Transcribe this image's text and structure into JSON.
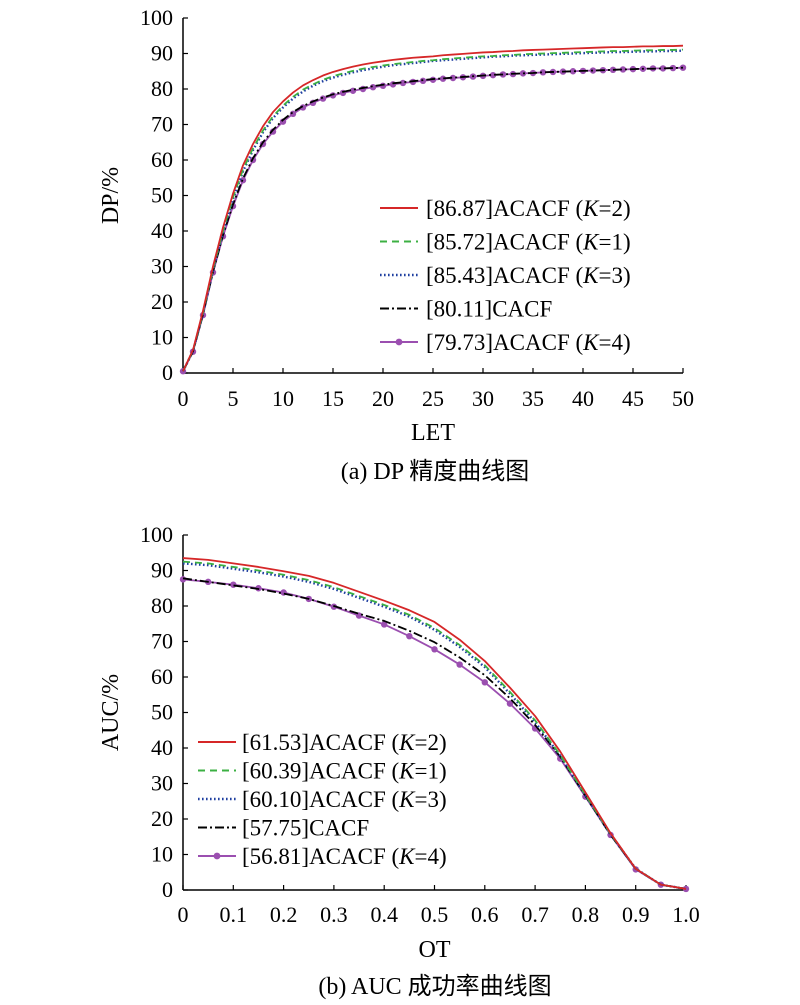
{
  "chart_data": [
    {
      "type": "line",
      "caption": "(a) DP 精度曲线图",
      "xlabel": "LET",
      "ylabel": "DP/%",
      "xlim": [
        0,
        50
      ],
      "ylim": [
        0,
        100
      ],
      "xticks": [
        "0",
        "5",
        "10",
        "15",
        "20",
        "25",
        "30",
        "35",
        "40",
        "45",
        "50"
      ],
      "yticks": [
        "0",
        "10",
        "20",
        "30",
        "40",
        "50",
        "60",
        "70",
        "80",
        "90",
        "100"
      ],
      "legend_position": "bottom-right",
      "x": [
        0,
        1,
        2,
        3,
        4,
        5,
        6,
        7,
        8,
        9,
        10,
        11,
        12,
        13,
        14,
        15,
        16,
        17,
        18,
        19,
        20,
        21,
        22,
        23,
        24,
        25,
        26,
        27,
        28,
        29,
        30,
        31,
        32,
        33,
        34,
        35,
        36,
        37,
        38,
        39,
        40,
        41,
        42,
        43,
        44,
        45,
        46,
        47,
        48,
        49,
        50
      ],
      "series": [
        {
          "name": "[86.87]ACACF (K=2)",
          "label_prefix": "[86.87]ACACF (",
          "label_italic": "K",
          "label_suffix": "=2)",
          "color": "#d62728",
          "style": "solid",
          "marker": false,
          "values": [
            0.5,
            6.5,
            17.5,
            30.0,
            41.0,
            50.5,
            58.5,
            64.5,
            69.5,
            73.5,
            76.5,
            79.0,
            81.0,
            82.5,
            83.8,
            84.8,
            85.6,
            86.3,
            86.9,
            87.4,
            87.8,
            88.2,
            88.5,
            88.8,
            89.0,
            89.2,
            89.5,
            89.7,
            89.9,
            90.1,
            90.3,
            90.4,
            90.6,
            90.7,
            90.9,
            91.0,
            91.1,
            91.2,
            91.3,
            91.4,
            91.5,
            91.6,
            91.7,
            91.8,
            91.8,
            91.9,
            92.0,
            92.0,
            92.1,
            92.1,
            92.2
          ]
        },
        {
          "name": "[85.72]ACACF (K=1)",
          "label_prefix": "[85.72]ACACF (",
          "label_italic": "K",
          "label_suffix": "=1)",
          "color": "#3cb043",
          "style": "dashed",
          "marker": false,
          "values": [
            0.5,
            6.3,
            17.0,
            29.3,
            40.0,
            49.5,
            57.3,
            63.3,
            68.3,
            72.3,
            75.3,
            77.8,
            79.8,
            81.3,
            82.6,
            83.6,
            84.4,
            85.1,
            85.7,
            86.2,
            86.6,
            87.0,
            87.3,
            87.6,
            87.9,
            88.1,
            88.4,
            88.6,
            88.8,
            89.0,
            89.2,
            89.3,
            89.5,
            89.6,
            89.8,
            89.9,
            90.0,
            90.1,
            90.2,
            90.3,
            90.4,
            90.5,
            90.6,
            90.7,
            90.7,
            90.8,
            90.9,
            90.9,
            91.0,
            91.0,
            91.1
          ]
        },
        {
          "name": "[85.43]ACACF (K=3)",
          "label_prefix": "[85.43]ACACF (",
          "label_italic": "K",
          "label_suffix": "=3)",
          "color": "#1f3fa0",
          "style": "dotted",
          "marker": false,
          "values": [
            0.5,
            6.2,
            16.8,
            29.0,
            39.6,
            49.0,
            56.8,
            62.8,
            67.8,
            71.8,
            74.8,
            77.3,
            79.3,
            80.9,
            82.2,
            83.2,
            84.0,
            84.7,
            85.3,
            85.8,
            86.3,
            86.7,
            87.0,
            87.3,
            87.6,
            87.9,
            88.1,
            88.3,
            88.5,
            88.7,
            88.9,
            89.1,
            89.2,
            89.4,
            89.5,
            89.6,
            89.7,
            89.8,
            89.9,
            90.0,
            90.1,
            90.2,
            90.3,
            90.4,
            90.4,
            90.5,
            90.6,
            90.6,
            90.7,
            90.7,
            90.8
          ]
        },
        {
          "name": "[80.11]CACF",
          "label_prefix": "[80.11]CACF",
          "label_italic": "",
          "label_suffix": "",
          "color": "#000000",
          "style": "dashdot",
          "marker": false,
          "values": [
            0.5,
            6.0,
            16.5,
            28.5,
            38.8,
            47.5,
            54.8,
            60.5,
            65.0,
            68.5,
            71.3,
            73.5,
            75.2,
            76.5,
            77.6,
            78.5,
            79.2,
            79.8,
            80.3,
            80.8,
            81.2,
            81.6,
            81.9,
            82.2,
            82.5,
            82.8,
            83.0,
            83.2,
            83.4,
            83.6,
            83.8,
            84.0,
            84.1,
            84.3,
            84.4,
            84.5,
            84.7,
            84.8,
            84.9,
            85.0,
            85.1,
            85.2,
            85.3,
            85.4,
            85.5,
            85.6,
            85.7,
            85.7,
            85.8,
            85.9,
            86.0
          ]
        },
        {
          "name": "[79.73]ACACF (K=4)",
          "label_prefix": "[79.73]ACACF (",
          "label_italic": "K",
          "label_suffix": "=4)",
          "color": "#9b4fb0",
          "style": "solid",
          "marker": true,
          "values": [
            0.5,
            6.0,
            16.3,
            28.3,
            38.5,
            47.0,
            54.3,
            60.0,
            64.5,
            68.0,
            70.8,
            73.0,
            74.8,
            76.1,
            77.3,
            78.2,
            78.9,
            79.5,
            80.0,
            80.5,
            80.9,
            81.3,
            81.7,
            82.0,
            82.3,
            82.6,
            82.9,
            83.1,
            83.3,
            83.5,
            83.7,
            83.9,
            84.1,
            84.2,
            84.4,
            84.5,
            84.7,
            84.8,
            84.9,
            85.0,
            85.1,
            85.2,
            85.3,
            85.4,
            85.5,
            85.6,
            85.7,
            85.8,
            85.8,
            85.9,
            86.0
          ]
        }
      ]
    },
    {
      "type": "line",
      "caption": "(b) AUC 成功率曲线图",
      "xlabel": "OT",
      "ylabel": "AUC/%",
      "xlim": [
        0,
        1
      ],
      "ylim": [
        0,
        100
      ],
      "xticks": [
        "0",
        "0.1",
        "0.2",
        "0.3",
        "0.4",
        "0.5",
        "0.6",
        "0.7",
        "0.8",
        "0.9",
        "1.0"
      ],
      "yticks": [
        "0",
        "10",
        "20",
        "30",
        "40",
        "50",
        "60",
        "70",
        "80",
        "90",
        "100"
      ],
      "legend_position": "bottom-left",
      "x": [
        0,
        0.05,
        0.1,
        0.15,
        0.2,
        0.25,
        0.3,
        0.35,
        0.4,
        0.45,
        0.5,
        0.55,
        0.6,
        0.65,
        0.7,
        0.75,
        0.8,
        0.85,
        0.9,
        0.95,
        1.0
      ],
      "series": [
        {
          "name": "[61.53]ACACF (K=2)",
          "label_prefix": "[61.53]ACACF (",
          "label_italic": "K",
          "label_suffix": "=2)",
          "color": "#d62728",
          "style": "solid",
          "marker": false,
          "values": [
            93.5,
            93.0,
            92.0,
            91.0,
            89.8,
            88.5,
            86.5,
            84.0,
            81.5,
            78.8,
            75.5,
            70.5,
            64.5,
            57.0,
            49.0,
            39.0,
            27.5,
            16.0,
            6.0,
            1.5,
            0.3
          ]
        },
        {
          "name": "[60.39]ACACF (K=1)",
          "label_prefix": "[60.39]ACACF (",
          "label_italic": "K",
          "label_suffix": "=1)",
          "color": "#3cb043",
          "style": "dashed",
          "marker": false,
          "values": [
            92.5,
            92.0,
            91.0,
            90.0,
            88.8,
            87.3,
            85.3,
            82.8,
            80.3,
            77.5,
            73.8,
            69.0,
            63.3,
            55.8,
            47.8,
            38.0,
            26.8,
            15.8,
            6.0,
            1.5,
            0.3
          ]
        },
        {
          "name": "[60.10]ACACF (K=3)",
          "label_prefix": "[60.10]ACACF (",
          "label_italic": "K",
          "label_suffix": "=3)",
          "color": "#1f3fa0",
          "style": "dotted",
          "marker": false,
          "values": [
            92.0,
            91.5,
            90.5,
            89.5,
            88.3,
            86.8,
            84.8,
            82.3,
            79.8,
            77.0,
            73.3,
            68.5,
            62.8,
            55.3,
            47.3,
            37.8,
            26.7,
            15.7,
            6.0,
            1.5,
            0.3
          ]
        },
        {
          "name": "[57.75]CACF",
          "label_prefix": "[57.75]CACF",
          "label_italic": "",
          "label_suffix": "",
          "color": "#000000",
          "style": "dashdot",
          "marker": false,
          "values": [
            87.8,
            86.8,
            85.8,
            84.8,
            83.5,
            82.0,
            80.0,
            77.8,
            75.8,
            73.0,
            69.8,
            65.5,
            60.5,
            54.0,
            46.5,
            37.5,
            26.5,
            15.5,
            6.0,
            1.5,
            0.3
          ]
        },
        {
          "name": "[56.81]ACACF (K=4)",
          "label_prefix": "[56.81]ACACF (",
          "label_italic": "K",
          "label_suffix": "=4)",
          "color": "#9b4fb0",
          "style": "solid",
          "marker": true,
          "values": [
            87.5,
            86.8,
            86.0,
            85.0,
            83.8,
            82.0,
            79.8,
            77.3,
            74.8,
            71.5,
            67.8,
            63.5,
            58.5,
            52.5,
            45.5,
            37.0,
            26.3,
            15.5,
            5.8,
            1.5,
            0.3
          ]
        }
      ]
    }
  ]
}
